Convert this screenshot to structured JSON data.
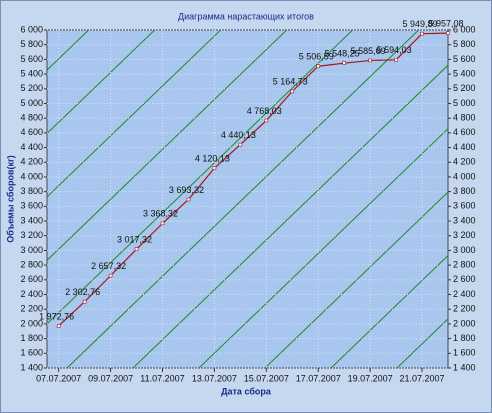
{
  "chart_data": {
    "type": "line",
    "title": "Диаграмма нарастающих итогов",
    "x_label": "Дата сбора",
    "y_label": "Объемы сборов(кг)",
    "x": [
      "07.07.2007",
      "08.07.2007",
      "09.07.2007",
      "10.07.2007",
      "11.07.2007",
      "12.07.2007",
      "13.07.2007",
      "14.07.2007",
      "15.07.2007",
      "16.07.2007",
      "17.07.2007",
      "18.07.2007",
      "19.07.2007",
      "20.07.2007",
      "21.07.2007",
      "22.07.2007"
    ],
    "values": [
      1972.76,
      2302.76,
      2657.32,
      3017.32,
      3368.32,
      3693.32,
      4120.13,
      4440.13,
      4768.03,
      5164.73,
      5506.59,
      5548.25,
      5585.69,
      5594.03,
      5949.89,
      5957.08
    ],
    "value_labels": [
      "1 972,76",
      "2 302,76",
      "2 657,32",
      "3 017,32",
      "3 368,32",
      "3 693,32",
      "4 120,13",
      "4 440,13",
      "4 768,03",
      "5 164,73",
      "5 506,59",
      "5 548,25",
      "5 585,69",
      "5 594,03",
      "5 949,89",
      "5 957,08"
    ],
    "color": "#a01818",
    "xticks": [
      "07.07.2007",
      "09.07.2007",
      "11.07.2007",
      "13.07.2007",
      "15.07.2007",
      "17.07.2007",
      "19.07.2007",
      "21.07.2007"
    ],
    "ylim": [
      1400,
      6000
    ],
    "yticks": [
      {
        "value": 1400,
        "label": "1 400"
      },
      {
        "value": 1600,
        "label": "1 600"
      },
      {
        "value": 1800,
        "label": "1 800"
      },
      {
        "value": 2000,
        "label": "2 000"
      },
      {
        "value": 2200,
        "label": "2 200"
      },
      {
        "value": 2400,
        "label": "2 400"
      },
      {
        "value": 2600,
        "label": "2 600"
      },
      {
        "value": 2800,
        "label": "2 800"
      },
      {
        "value": 3000,
        "label": "3 000"
      },
      {
        "value": 3200,
        "label": "3 200"
      },
      {
        "value": 3400,
        "label": "3 400"
      },
      {
        "value": 3600,
        "label": "3 600"
      },
      {
        "value": 3800,
        "label": "3 800"
      },
      {
        "value": 4000,
        "label": "4 000"
      },
      {
        "value": 4200,
        "label": "4 200"
      },
      {
        "value": 4400,
        "label": "4 400"
      },
      {
        "value": 4600,
        "label": "4 600"
      },
      {
        "value": 4800,
        "label": "4 800"
      },
      {
        "value": 5000,
        "label": "5 000"
      },
      {
        "value": 5200,
        "label": "5 200"
      },
      {
        "value": 5400,
        "label": "5 400"
      },
      {
        "value": 5600,
        "label": "5 600"
      },
      {
        "value": 5800,
        "label": "5 800"
      },
      {
        "value": 6000,
        "label": "6 000"
      }
    ],
    "y2lim": [
      1400,
      6000
    ],
    "y2ticks": [
      {
        "value": 1400,
        "label": "1 400"
      },
      {
        "value": 1600,
        "label": "1 600"
      },
      {
        "value": 1800,
        "label": "1 800"
      },
      {
        "value": 2000,
        "label": "2 000"
      },
      {
        "value": 2200,
        "label": "2 200"
      },
      {
        "value": 2400,
        "label": "2 400"
      },
      {
        "value": 2600,
        "label": "2 600"
      },
      {
        "value": 2800,
        "label": "2 800"
      },
      {
        "value": 3000,
        "label": "3 000"
      },
      {
        "value": 3200,
        "label": "3 200"
      },
      {
        "value": 3400,
        "label": "3 400"
      },
      {
        "value": 3600,
        "label": "3 600"
      },
      {
        "value": 3800,
        "label": "3 800"
      },
      {
        "value": 4000,
        "label": "4 000"
      },
      {
        "value": 4200,
        "label": "4 200"
      },
      {
        "value": 4400,
        "label": "4 400"
      },
      {
        "value": 4600,
        "label": "4 600"
      },
      {
        "value": 4800,
        "label": "4 800"
      },
      {
        "value": 5000,
        "label": "5 000"
      },
      {
        "value": 5200,
        "label": "5 200"
      },
      {
        "value": 5400,
        "label": "5 400"
      },
      {
        "value": 5600,
        "label": "5 600"
      },
      {
        "value": 5800,
        "label": "5 800"
      },
      {
        "value": 6000,
        "label": "6 000"
      }
    ],
    "grid": true
  }
}
